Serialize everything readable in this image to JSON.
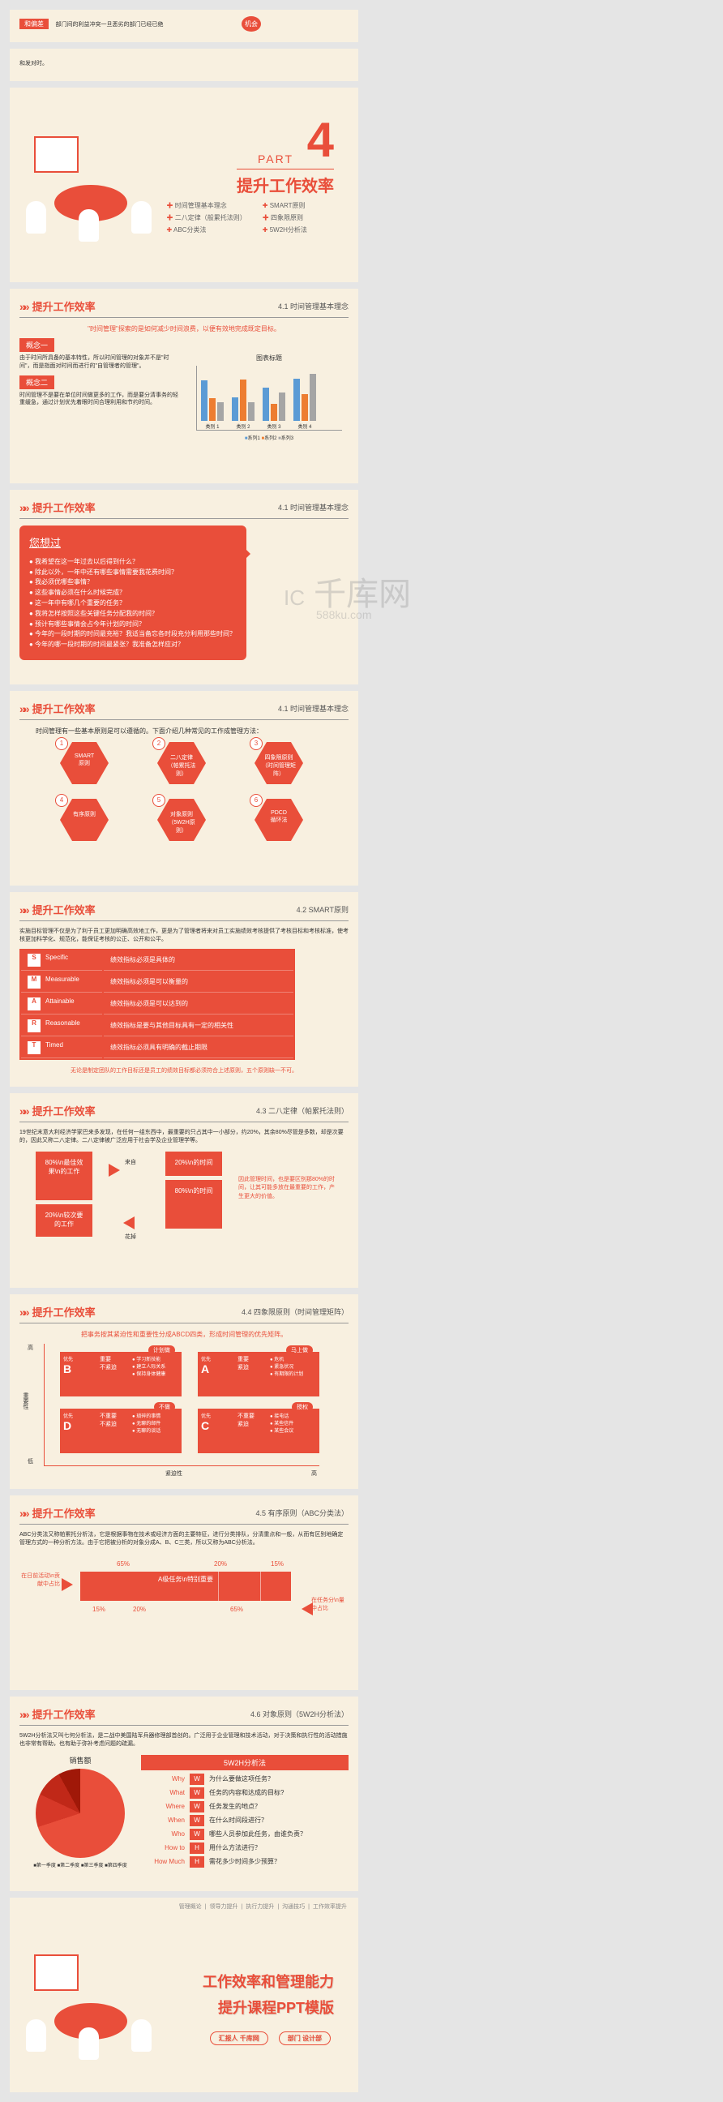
{
  "watermark": {
    "main": "千库网",
    "sub": "588ku.com",
    "icon": "IC"
  },
  "s1": {
    "label1": "机会",
    "label2": "和偏差",
    "text": "部门间的利益冲突一旦恶劣的部门已经已绝"
  },
  "s1b": {
    "text": "和发对时。"
  },
  "part4": {
    "num": "4",
    "label": "PART",
    "title": "提升工作效率",
    "items": [
      "时间管理基本理念",
      "SMART原则",
      "二八定律（般累托法则）",
      "四象限原则",
      "ABC分类法",
      "5W2H分析法"
    ]
  },
  "s41": {
    "title": "提升工作效率",
    "sub": "4.1 时间管理基本理念",
    "quote": "\"时间管理\"探索的是如何减少时间浪费，以便有效地完成既定目标。",
    "c1": "概念一",
    "c1t": "由于时间所具备的基本特性，所以时间管理的对象并不是\"时间\"，而是指面对时间而进行的\"自管理者的管理\"。",
    "c2": "概念二",
    "c2t": "时间管理不是要在单位时间做更多的工作，而是要分清事务的轻重缓急，通过计划优先着眼时间合理利用和节约时间。",
    "chartTitle": "图表标题",
    "cats": [
      "类别 1",
      "类别 2",
      "类别 3",
      "类别 4"
    ],
    "legend": [
      "系列1",
      "系列2",
      "系列3"
    ],
    "colors": [
      "#5b9bd5",
      "#ed7d31",
      "#a5a5a5"
    ],
    "data": [
      [
        4.3,
        2.5,
        3.5,
        4.5
      ],
      [
        2.4,
        4.4,
        1.8,
        2.8
      ],
      [
        2,
        2,
        3,
        5
      ]
    ],
    "ymax": 6
  },
  "s41b": {
    "title": "提升工作效率",
    "sub": "4.1 时间管理基本理念",
    "speechTitle": "您想过",
    "bullets": [
      "我希望在这一年过去以后得到什么？",
      "除此以外，一年中还有哪些事情需要我花费时间？",
      "我必须优哪些事情？",
      "这些事情必须在什么时候完成？",
      "这一年中有哪几个重要的任务？",
      "我将怎样按照这些关键任务分配我的时间？",
      "预计有哪些事情会占今年计划的时间？",
      "今年的一段时期的时间最充裕？我适当备忘各时段充分利用那些时间？",
      "今年的哪一段时期的时间最紧张？我准备怎样应对？"
    ]
  },
  "s41c": {
    "title": "提升工作效率",
    "sub": "4.1 时间管理基本理念",
    "intro": "时间管理有一些基本原则是可以遵循的。下面介绍几种常见的工作成管理方法：",
    "hexes": [
      {
        "n": "1",
        "t": "SMART\\n原则"
      },
      {
        "n": "2",
        "t": "二八定律\\n（帕累托法\\n则）"
      },
      {
        "n": "3",
        "t": "四象限原则\\n（时间管理矩\\n阵）"
      },
      {
        "n": "4",
        "t": "有序原则"
      },
      {
        "n": "5",
        "t": "对象原则\\n（5W2H原\\n则）"
      },
      {
        "n": "6",
        "t": "PDCD\\n循环法"
      }
    ]
  },
  "s42": {
    "title": "提升工作效率",
    "sub": "4.2 SMART原则",
    "intro": "实施目标管理不仅是为了利于员工更加明确高效地工作，更是为了管理者将来对员工实施绩效考核提供了考核目标和考核标准，使考核更加科学化、规范化，能保证考核的公正、公开和公平。",
    "rows": [
      [
        "S",
        "Specific",
        "绩效指标必须是具体的"
      ],
      [
        "M",
        "Measurable",
        "绩效指标必须是可以衡量的"
      ],
      [
        "A",
        "Attainable",
        "绩效指标必须是可以达到的"
      ],
      [
        "R",
        "Reasonable",
        "绩效指标是要与其他目标具有一定的相关性"
      ],
      [
        "T",
        "Timed",
        "绩效指标必须具有明确的截止期限"
      ]
    ],
    "foot": "无论是制定团队的工作目标还是员工的绩效目标都必须符合上述原则，五个原则缺一不可。"
  },
  "s43": {
    "title": "提升工作效率",
    "sub": "4.3 二八定律（帕累托法则）",
    "intro": "19世纪末意大利经济学家巴来多发现，在任何一组东西中，最重要的只占其中一小部分，约20%，其余80%尽管是多数，却是次要的，因此又称二八定律。二八定律被广泛应用于社会学及企业管理学等。",
    "b1": "80%\\n最佳效果\\n的工作",
    "b2": "20%\\n较次要的工作",
    "b3": "20%\\n的时间",
    "b4": "80%\\n的时间",
    "l1": "来自",
    "l2": "花掉",
    "note": "因此管理时间，也是要区别那80%的时间，让其可能多放在最重要的工作，产生更大的价值。"
  },
  "s44": {
    "title": "提升工作效率",
    "sub": "4.4 四象限原则（时间管理矩阵）",
    "intro": "把事务按其紧迫性和重要性分成ABCD四类，形成时间管理的优先矩阵。",
    "yH": "高",
    "yL": "低",
    "yLabel": "重要性",
    "xL": "低",
    "xH": "高",
    "xLabel": "紧迫性",
    "quads": [
      {
        "tag": "计划做",
        "p": "优先",
        "l": "B",
        "t1": "重要",
        "t2": "不紧迫",
        "items": [
          "学习新技能",
          "建立人际关系",
          "保持身体健康"
        ]
      },
      {
        "tag": "马上做",
        "p": "优先",
        "l": "A",
        "t1": "重要",
        "t2": "紧迫",
        "items": [
          "危机",
          "紧急状况",
          "有期限的计划"
        ]
      },
      {
        "tag": "不做",
        "p": "优先",
        "l": "D",
        "t1": "不重要",
        "t2": "不紧迫",
        "items": [
          "琐碎的事情",
          "无聊的邮件",
          "无聊的谈话"
        ]
      },
      {
        "tag": "授权",
        "p": "优先",
        "l": "C",
        "t1": "不重要",
        "t2": "紧迫",
        "items": [
          "接电话",
          "某些信件",
          "某些会议"
        ]
      }
    ]
  },
  "s45": {
    "title": "提升工作效率",
    "sub": "4.5 有序原则（ABC分类法）",
    "intro": "ABC分类法又称帕累托分析法，它是根据事物在技术或经济方面的主要特征，进行分类排队，分清重点和一般，从而有区别地确定管理方式的一种分析方法。由于它把被分析的对象分成A、B、C三类，所以又称为ABC分析法。",
    "leftLabel": "在日前活动\\n贡献中占比",
    "rightLabel": "在任务分\\n量中占比",
    "top": [
      "65%",
      "20%",
      "15%"
    ],
    "bot": [
      "15%",
      "20%",
      "65%"
    ],
    "a": "A级任务\\n特别重要"
  },
  "s46": {
    "title": "提升工作效率",
    "sub": "4.6 对象原则（5W2H分析法）",
    "intro": "5W2H分析法又叫七何分析法，是二战中美国陆军兵器修理部首创的。广泛用于企业管理和技术活动，对于决策和执行性的活动措施也非常有帮助，也有助于弥补考虑问题的疏漏。",
    "pieTitle": "销售额",
    "legend": [
      "第一季度",
      "第二季度",
      "第三季度",
      "第四季度"
    ],
    "boxTitle": "5W2H分析法",
    "rows": [
      [
        "Why",
        "W",
        "为什么要做这项任务？"
      ],
      [
        "What",
        "W",
        "任务的内容和达成的目标?"
      ],
      [
        "Where",
        "W",
        "任务发生的地点？"
      ],
      [
        "When",
        "W",
        "在什么时间段进行？"
      ],
      [
        "Who",
        "W",
        "哪些人员参加此任务，由谁负责？"
      ],
      [
        "How to",
        "H",
        "用什么方法进行？"
      ],
      [
        "How Much",
        "H",
        "需花多少时间多少预算？"
      ]
    ]
  },
  "final": {
    "nav": [
      "管理概论",
      "领导力提升",
      "执行力提升",
      "沟通技巧",
      "工作效率提升"
    ],
    "line1": "工作效率和管理能力",
    "line2": "提升课程PPT模版",
    "p1l": "汇报人",
    "p1v": "千库网",
    "p2l": "部门",
    "p2v": "设计部"
  }
}
